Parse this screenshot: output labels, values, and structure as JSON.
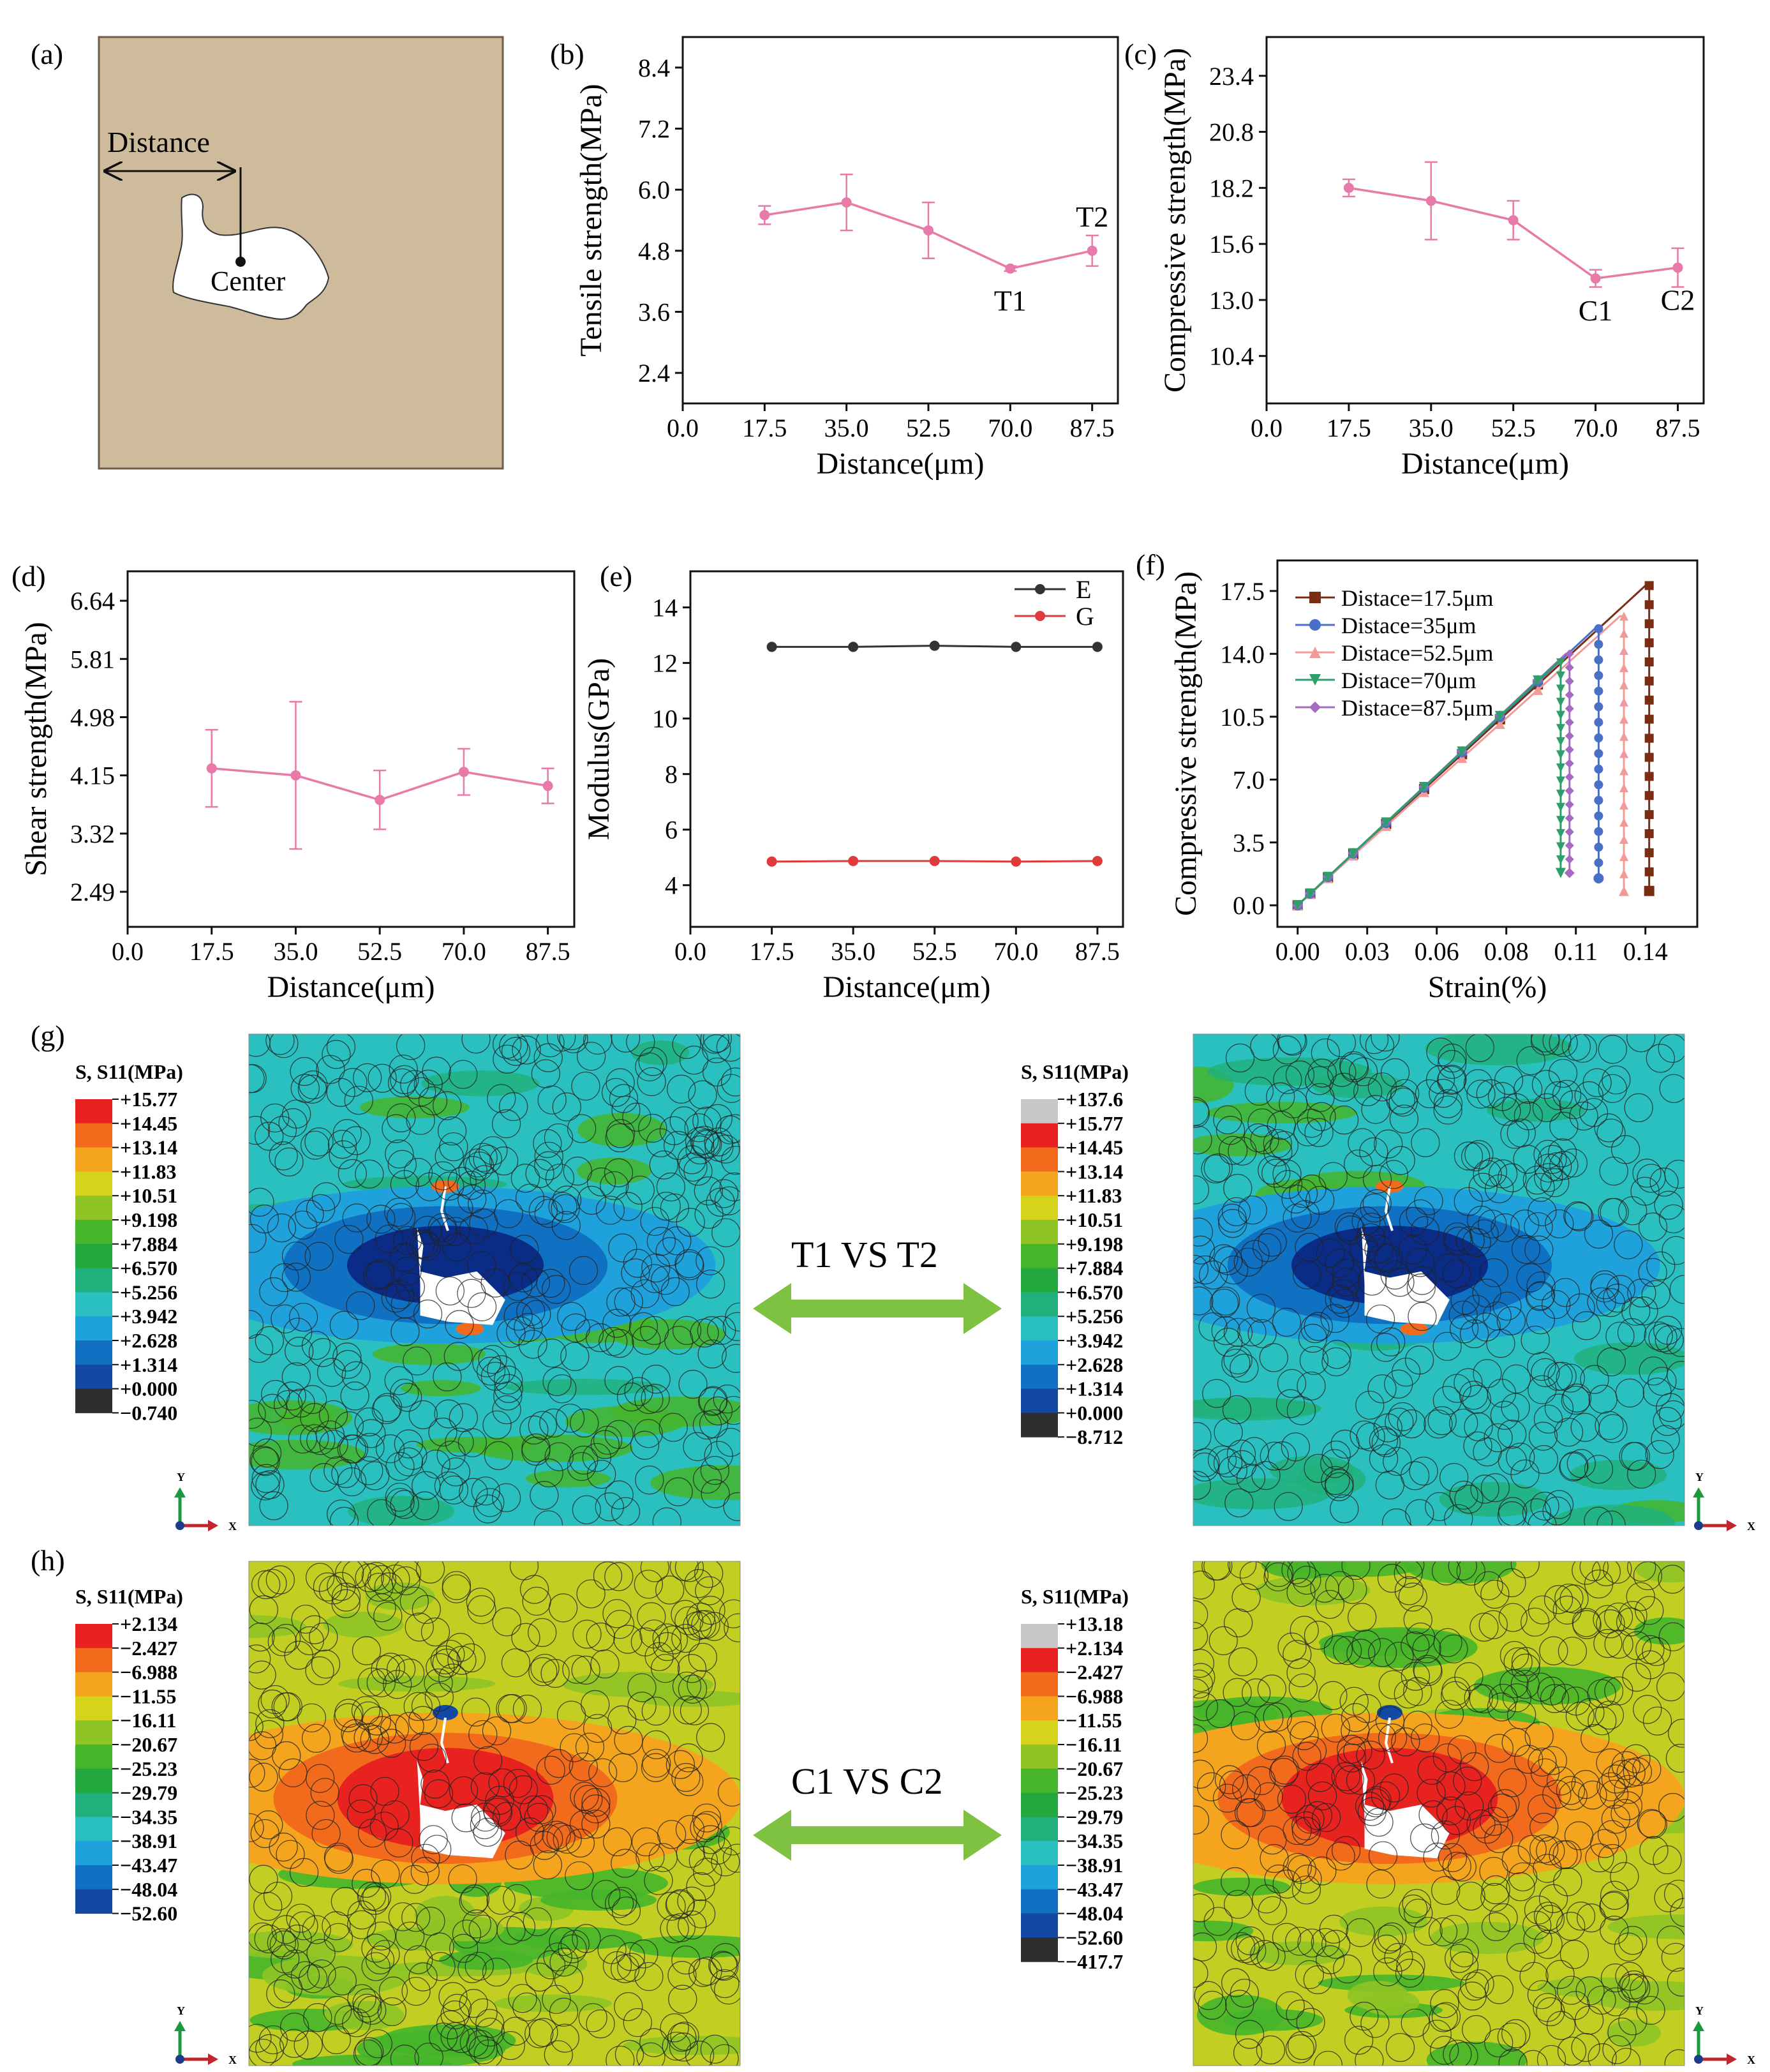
{
  "panel_labels": {
    "a": "(a)",
    "b": "(b)",
    "c": "(c)",
    "d": "(d)",
    "e": "(e)",
    "f": "(f)",
    "g": "(g)",
    "h": "(h)"
  },
  "schematic": {
    "distance_label": "Distance",
    "center_label": "Center",
    "background_color": "#cdbb9c"
  },
  "colors": {
    "pink": "#e77aa8",
    "black_series": "#333333",
    "red_series": "#e03a3a",
    "arrow_green": "#7fc241"
  },
  "chart_data": [
    {
      "id": "b",
      "type": "line",
      "title": "",
      "xlabel": "Distance(μm)",
      "ylabel": "Tensile strength(MPa)",
      "xlim": [
        0,
        93
      ],
      "ylim": [
        1.8,
        9.0
      ],
      "xticks": [
        "0.0",
        "17.5",
        "35.0",
        "52.5",
        "70.0",
        "87.5"
      ],
      "yticks": [
        "2.4",
        "3.6",
        "4.8",
        "6.0",
        "7.2",
        "8.4"
      ],
      "series": [
        {
          "name": "Tensile strength",
          "x": [
            17.5,
            35.0,
            52.5,
            70.0,
            87.5
          ],
          "y": [
            5.5,
            5.75,
            5.2,
            4.45,
            4.8
          ],
          "err": [
            0.18,
            0.55,
            0.55,
            0.05,
            0.3
          ]
        }
      ],
      "annotations": [
        {
          "text": "T1",
          "x": 70.0,
          "y": 4.45,
          "pos": "below"
        },
        {
          "text": "T2",
          "x": 87.5,
          "y": 4.8,
          "pos": "above"
        }
      ]
    },
    {
      "id": "c",
      "type": "line",
      "title": "",
      "xlabel": "Distance(μm)",
      "ylabel": "Compressive strength(MPa)",
      "xlim": [
        0,
        93
      ],
      "ylim": [
        8.2,
        25.2
      ],
      "xticks": [
        "0.0",
        "17.5",
        "35.0",
        "52.5",
        "70.0",
        "87.5"
      ],
      "yticks": [
        "10.4",
        "13.0",
        "15.6",
        "18.2",
        "20.8",
        "23.4"
      ],
      "series": [
        {
          "name": "Compressive strength",
          "x": [
            17.5,
            35.0,
            52.5,
            70.0,
            87.5
          ],
          "y": [
            18.2,
            17.6,
            16.7,
            14.0,
            14.5
          ],
          "err": [
            0.4,
            1.8,
            0.9,
            0.4,
            0.9
          ]
        }
      ],
      "annotations": [
        {
          "text": "C1",
          "x": 70.0,
          "y": 14.0,
          "pos": "below"
        },
        {
          "text": "C2",
          "x": 87.5,
          "y": 14.5,
          "pos": "below"
        }
      ]
    },
    {
      "id": "d",
      "type": "line",
      "title": "",
      "xlabel": "Distance(μm)",
      "ylabel": "Shear strength(MPa)",
      "xlim": [
        0,
        93
      ],
      "ylim": [
        1.99,
        7.06
      ],
      "xticks": [
        "0.0",
        "17.5",
        "35.0",
        "52.5",
        "70.0",
        "87.5"
      ],
      "yticks": [
        "2.49",
        "3.32",
        "4.15",
        "4.98",
        "5.81",
        "6.64"
      ],
      "series": [
        {
          "name": "Shear strength",
          "x": [
            17.5,
            35.0,
            52.5,
            70.0,
            87.5
          ],
          "y": [
            4.25,
            4.15,
            3.8,
            4.2,
            4.0
          ],
          "err": [
            0.55,
            1.05,
            0.42,
            0.33,
            0.25
          ]
        }
      ],
      "annotations": []
    },
    {
      "id": "e",
      "type": "line",
      "title": "",
      "xlabel": "Distance(μm)",
      "ylabel": "Modulus(GPa)",
      "xlim": [
        0,
        93
      ],
      "ylim": [
        2.5,
        15.3
      ],
      "xticks": [
        "0.0",
        "17.5",
        "35.0",
        "52.5",
        "70.0",
        "87.5"
      ],
      "yticks": [
        "4",
        "6",
        "8",
        "10",
        "12",
        "14"
      ],
      "series": [
        {
          "name": "E",
          "x": [
            17.5,
            35.0,
            52.5,
            70.0,
            87.5
          ],
          "y": [
            12.58,
            12.58,
            12.62,
            12.58,
            12.58
          ]
        },
        {
          "name": "G",
          "x": [
            17.5,
            35.0,
            52.5,
            70.0,
            87.5
          ],
          "y": [
            4.85,
            4.87,
            4.87,
            4.85,
            4.87
          ]
        }
      ],
      "legend": "top-right"
    },
    {
      "id": "f",
      "type": "line",
      "title": "",
      "xlabel": "Strain(%)",
      "ylabel": "Compressive strength(MPa)",
      "xlim": [
        -0.008,
        0.158
      ],
      "ylim": [
        -1.2,
        19.2
      ],
      "xticks": [
        "0.00",
        "0.03",
        "0.06",
        "0.08",
        "0.11",
        "0.14"
      ],
      "xtick_values": [
        0.0,
        0.0275,
        0.055,
        0.0825,
        0.11,
        0.1375
      ],
      "yticks": [
        "0.0",
        "3.5",
        "7.0",
        "10.5",
        "14.0",
        "17.5"
      ],
      "legend": "top-left",
      "series": [
        {
          "name": "Distace=17.5μm",
          "color": "#7a2d10",
          "marker": "square",
          "peak_strain": 0.1375,
          "peak": 17.8,
          "final": 0.8
        },
        {
          "name": "Distace=35μm",
          "color": "#4a6fc6",
          "marker": "circle",
          "peak_strain": 0.1175,
          "peak": 15.4,
          "final": 1.5
        },
        {
          "name": "Distace=52.5μm",
          "color": "#f29a9a",
          "marker": "triangle-up",
          "peak_strain": 0.1275,
          "peak": 16.1,
          "final": 0.8
        },
        {
          "name": "Distace=70μm",
          "color": "#2e9e6b",
          "marker": "triangle-down",
          "peak_strain": 0.1025,
          "peak": 13.5,
          "final": 1.8
        },
        {
          "name": "Distace=87.5μm",
          "color": "#a66ac1",
          "marker": "diamond",
          "peak_strain": 0.106,
          "peak": 14.0,
          "final": 1.8
        }
      ]
    }
  ],
  "contours": {
    "title": "S, S11(MPa)",
    "axis_y": "Y",
    "axis_x": "X",
    "g_left_scale": [
      "+15.77",
      "+14.45",
      "+13.14",
      "+11.83",
      "+10.51",
      "+9.198",
      "+7.884",
      "+6.570",
      "+5.256",
      "+3.942",
      "+2.628",
      "+1.314",
      "+0.000",
      "−0.740"
    ],
    "g_right_scale": [
      "+137.6",
      "+15.77",
      "+14.45",
      "+13.14",
      "+11.83",
      "+10.51",
      "+9.198",
      "+7.884",
      "+6.570",
      "+5.256",
      "+3.942",
      "+2.628",
      "+1.314",
      "+0.000",
      "−8.712"
    ],
    "h_left_scale": [
      "+2.134",
      "−2.427",
      "−6.988",
      "−11.55",
      "−16.11",
      "−20.67",
      "−25.23",
      "−29.79",
      "−34.35",
      "−38.91",
      "−43.47",
      "−48.04",
      "−52.60"
    ],
    "h_right_scale": [
      "+13.18",
      "+2.134",
      "−2.427",
      "−6.988",
      "−11.55",
      "−16.11",
      "−20.67",
      "−25.23",
      "−29.79",
      "−34.35",
      "−38.91",
      "−43.47",
      "−48.04",
      "−52.60",
      "−417.7"
    ],
    "compare_g": "T1   VS   T2",
    "compare_h": "C1   VS   C2",
    "band_colors": [
      "#e8231f",
      "#f26b1d",
      "#f5a51d",
      "#d6d31d",
      "#8ec426",
      "#45b52a",
      "#22a83c",
      "#21b07b",
      "#2bc0c0",
      "#1fa2dc",
      "#1070c2",
      "#1349a5",
      "#0b2c86",
      "#2e2e2e"
    ],
    "overflow_color": "#c8c8c8"
  }
}
